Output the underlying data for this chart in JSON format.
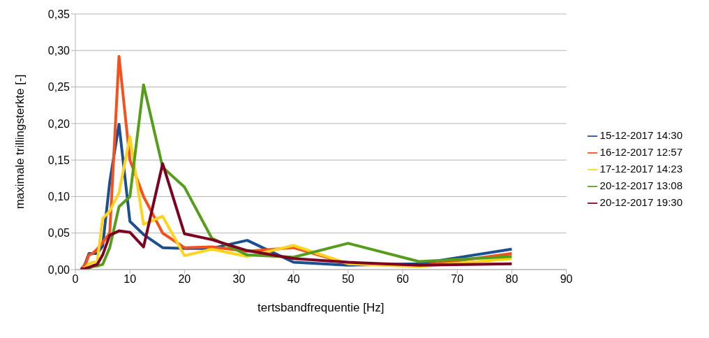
{
  "chart_data": {
    "type": "line",
    "xlabel": "tertsbandfrequentie [Hz]",
    "ylabel": "maximale trillingsterkte [-]",
    "x": [
      1,
      1.25,
      1.6,
      2,
      2.5,
      3.15,
      4,
      5,
      6.3,
      8,
      10,
      12.5,
      16,
      20,
      25,
      31.5,
      40,
      50,
      63,
      80
    ],
    "xlim": [
      0,
      90
    ],
    "xticks": [
      0,
      10,
      20,
      30,
      40,
      50,
      60,
      70,
      80,
      90
    ],
    "ylim": [
      0,
      0.35
    ],
    "yticks": [
      {
        "value": 0,
        "label": "0,00"
      },
      {
        "value": 0.05,
        "label": "0,05"
      },
      {
        "value": 0.1,
        "label": "0,10"
      },
      {
        "value": 0.15,
        "label": "0,15"
      },
      {
        "value": 0.2,
        "label": "0,20"
      },
      {
        "value": 0.25,
        "label": "0,25"
      },
      {
        "value": 0.3,
        "label": "0,30"
      },
      {
        "value": 0.35,
        "label": "0,35"
      }
    ],
    "grid": "y",
    "legend": "right",
    "marker": "none",
    "line_style": "solid",
    "series": [
      {
        "name": "15-12-2017 14:30",
        "color": "#1c4f8f",
        "values": [
          0.001,
          0.002,
          0.005,
          0.012,
          0.022,
          0.022,
          0.022,
          0.032,
          0.12,
          0.199,
          0.066,
          0.048,
          0.03,
          0.029,
          0.029,
          0.04,
          0.01,
          0.006,
          0.008,
          0.028
        ]
      },
      {
        "name": "16-12-2017 12:57",
        "color": "#f4511e",
        "values": [
          0.001,
          0.002,
          0.005,
          0.01,
          0.02,
          0.022,
          0.028,
          0.037,
          0.05,
          0.292,
          0.15,
          0.1,
          0.05,
          0.03,
          0.031,
          0.025,
          0.03,
          0.008,
          0.005,
          0.022
        ]
      },
      {
        "name": "17-12-2017 14:23",
        "color": "#ffd320",
        "values": [
          0,
          0.001,
          0.002,
          0.004,
          0.008,
          0.01,
          0.01,
          0.07,
          0.08,
          0.105,
          0.182,
          0.062,
          0.073,
          0.019,
          0.028,
          0.018,
          0.033,
          0.008,
          0.004,
          0.015
        ]
      },
      {
        "name": "20-12-2017 13:08",
        "color": "#579d1c",
        "values": [
          null,
          null,
          null,
          0.001,
          0.002,
          0.004,
          0.005,
          0.007,
          0.03,
          0.086,
          0.1,
          0.253,
          0.14,
          0.113,
          0.043,
          0.02,
          0.017,
          0.036,
          0.011,
          0.018
        ]
      },
      {
        "name": "20-12-2017 19:30",
        "color": "#7e0021",
        "values": [
          0,
          0.001,
          0.001,
          0.002,
          0.003,
          0.005,
          0.007,
          0.02,
          0.047,
          0.053,
          0.051,
          0.031,
          0.145,
          0.049,
          0.041,
          0.026,
          0.015,
          0.01,
          0.006,
          0.008
        ]
      }
    ]
  }
}
